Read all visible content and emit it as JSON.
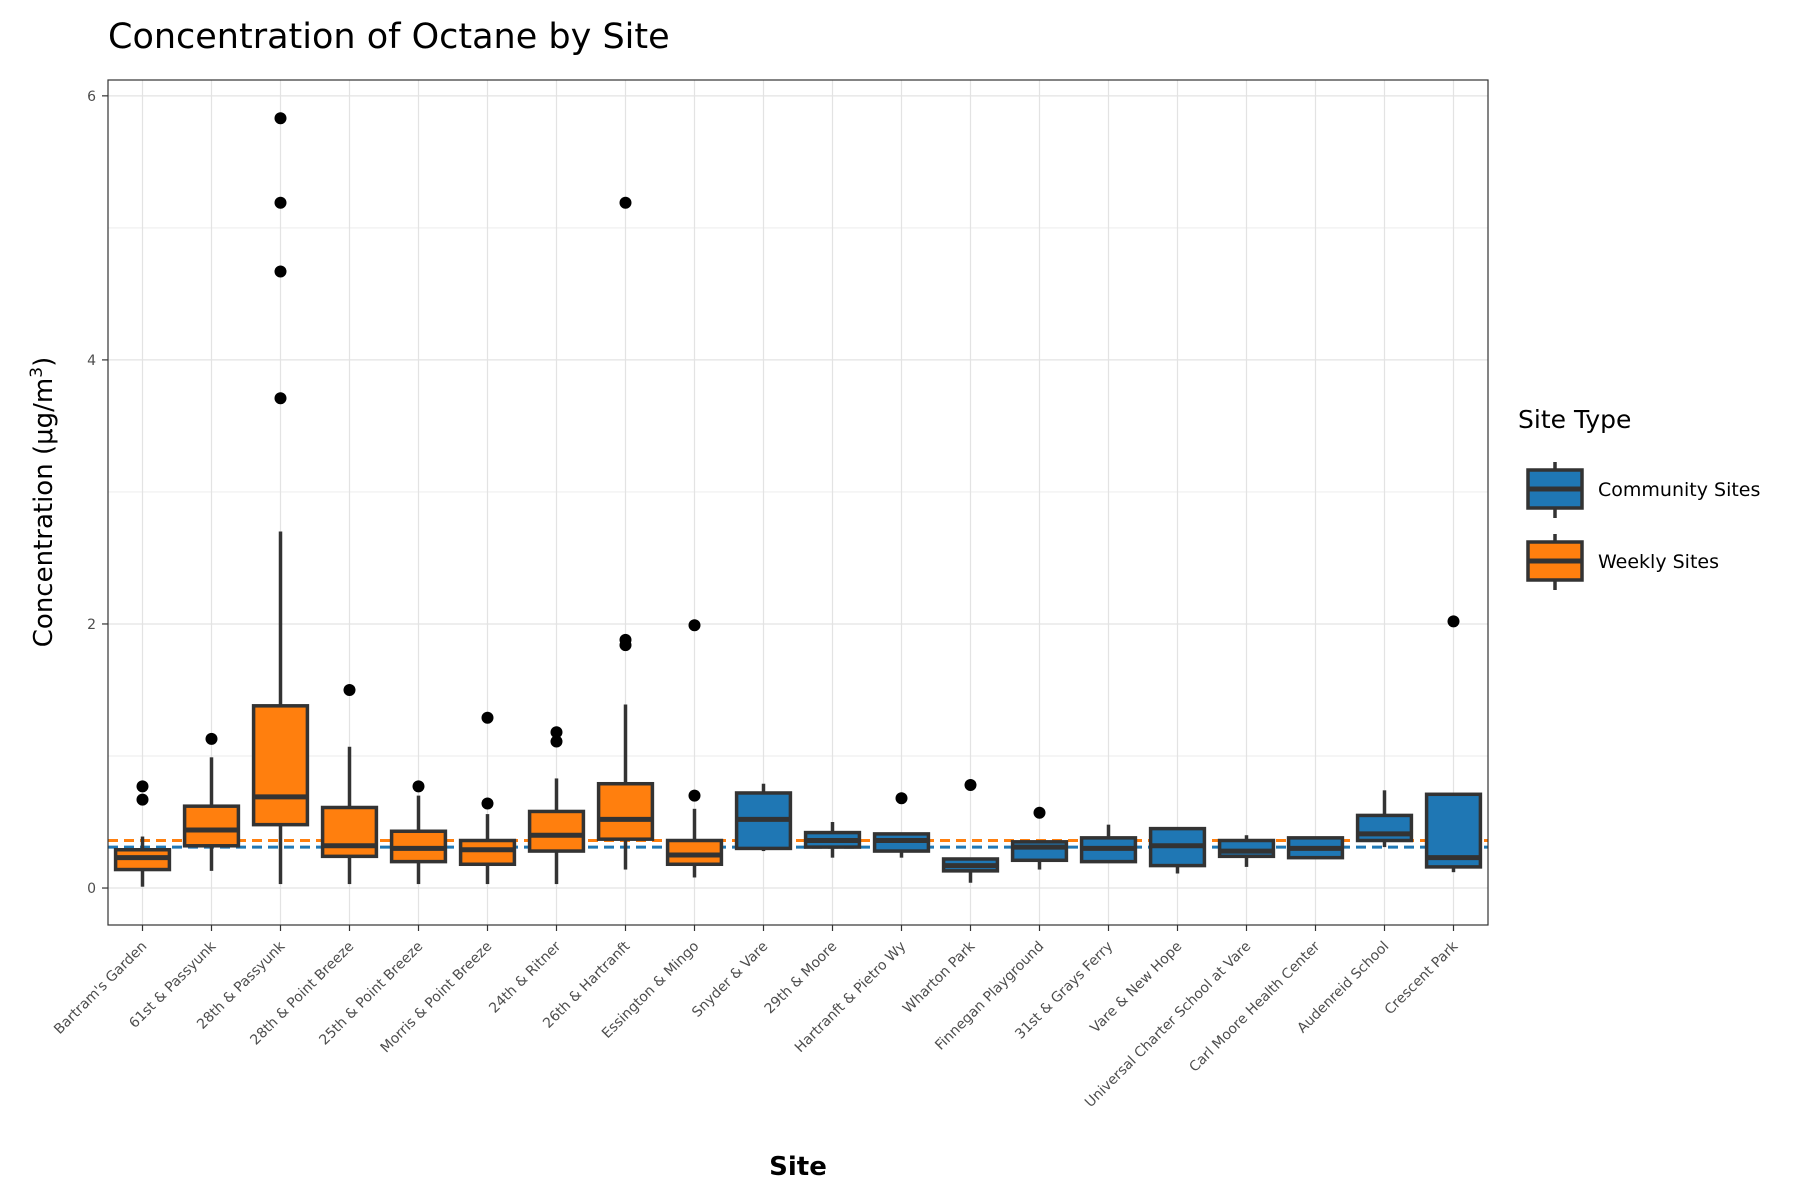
{
  "chart_data": {
    "type": "box",
    "title": "Concentration of Octane by Site",
    "xlabel": "Site",
    "ylabel_main": "Concentration (μg/m",
    "ylabel_sup": "3",
    "ylabel_close": ")",
    "ylim": [
      -0.28,
      6.12
    ],
    "yticks": [
      0,
      2,
      4,
      6
    ],
    "grid": true,
    "legend": {
      "title": "Site Type",
      "position": "right",
      "entries": [
        {
          "key": "community",
          "label": "Community Sites",
          "color": "#1f77b4"
        },
        {
          "key": "weekly",
          "label": "Weekly Sites",
          "color": "#ff7f0e"
        }
      ]
    },
    "reference_lines": [
      {
        "type": "weekly",
        "color": "#ff7f0e",
        "y": 0.36
      },
      {
        "type": "community",
        "color": "#1f77b4",
        "y": 0.31
      }
    ],
    "categories": [
      "Bartram's Garden",
      "61st & Passyunk",
      "28th & Passyunk",
      "28th & Point Breeze",
      "25th & Point Breeze",
      "Morris & Point Breeze",
      "24th & Ritner",
      "26th & Hartranft",
      "Essington & Mingo",
      "Snyder & Vare",
      "29th & Moore",
      "Hartranft & Pietro Wy",
      "Wharton Park",
      "Finnegan Playground",
      "31st & Grays Ferry",
      "Vare & New Hope",
      "Universal Charter School at Vare",
      "Carl Moore Health Center",
      "Audenreid School",
      "Crescent Park"
    ],
    "boxes": [
      {
        "site": "Bartram's Garden",
        "type": "weekly",
        "min": 0.01,
        "q1": 0.14,
        "median": 0.23,
        "q3": 0.29,
        "max": 0.39,
        "outliers": [
          0.77,
          0.67
        ]
      },
      {
        "site": "61st & Passyunk",
        "type": "weekly",
        "min": 0.13,
        "q1": 0.32,
        "median": 0.44,
        "q3": 0.62,
        "max": 0.99,
        "outliers": [
          1.13
        ]
      },
      {
        "site": "28th & Passyunk",
        "type": "weekly",
        "min": 0.03,
        "q1": 0.48,
        "median": 0.69,
        "q3": 1.38,
        "max": 2.7,
        "outliers": [
          5.83,
          5.19,
          4.67,
          3.71
        ]
      },
      {
        "site": "28th & Point Breeze",
        "type": "weekly",
        "min": 0.03,
        "q1": 0.24,
        "median": 0.32,
        "q3": 0.61,
        "max": 1.07,
        "outliers": [
          1.5
        ]
      },
      {
        "site": "25th & Point Breeze",
        "type": "weekly",
        "min": 0.03,
        "q1": 0.2,
        "median": 0.3,
        "q3": 0.43,
        "max": 0.7,
        "outliers": [
          0.77
        ]
      },
      {
        "site": "Morris & Point Breeze",
        "type": "weekly",
        "min": 0.03,
        "q1": 0.18,
        "median": 0.29,
        "q3": 0.36,
        "max": 0.56,
        "outliers": [
          1.29,
          0.64
        ]
      },
      {
        "site": "24th & Ritner",
        "type": "weekly",
        "min": 0.03,
        "q1": 0.28,
        "median": 0.4,
        "q3": 0.58,
        "max": 0.83,
        "outliers": [
          1.18,
          1.11
        ]
      },
      {
        "site": "26th & Hartranft",
        "type": "weekly",
        "min": 0.14,
        "q1": 0.37,
        "median": 0.52,
        "q3": 0.79,
        "max": 1.39,
        "outliers": [
          5.19,
          1.88,
          1.84
        ]
      },
      {
        "site": "Essington & Mingo",
        "type": "weekly",
        "min": 0.08,
        "q1": 0.18,
        "median": 0.25,
        "q3": 0.36,
        "max": 0.6,
        "outliers": [
          1.99,
          0.7
        ]
      },
      {
        "site": "Snyder & Vare",
        "type": "community",
        "min": 0.28,
        "q1": 0.3,
        "median": 0.52,
        "q3": 0.72,
        "max": 0.79,
        "outliers": []
      },
      {
        "site": "29th & Moore",
        "type": "community",
        "min": 0.23,
        "q1": 0.31,
        "median": 0.36,
        "q3": 0.42,
        "max": 0.5,
        "outliers": []
      },
      {
        "site": "Hartranft & Pietro Wy",
        "type": "community",
        "min": 0.23,
        "q1": 0.28,
        "median": 0.36,
        "q3": 0.41,
        "max": 0.41,
        "outliers": [
          0.68
        ]
      },
      {
        "site": "Wharton Park",
        "type": "community",
        "min": 0.04,
        "q1": 0.13,
        "median": 0.17,
        "q3": 0.22,
        "max": 0.22,
        "outliers": [
          0.78
        ]
      },
      {
        "site": "Finnegan Playground",
        "type": "community",
        "min": 0.14,
        "q1": 0.21,
        "median": 0.31,
        "q3": 0.35,
        "max": 0.35,
        "outliers": [
          0.57
        ]
      },
      {
        "site": "31st & Grays Ferry",
        "type": "community",
        "min": 0.2,
        "q1": 0.2,
        "median": 0.3,
        "q3": 0.38,
        "max": 0.48,
        "outliers": []
      },
      {
        "site": "Vare & New Hope",
        "type": "community",
        "min": 0.11,
        "q1": 0.17,
        "median": 0.32,
        "q3": 0.45,
        "max": 0.45,
        "outliers": []
      },
      {
        "site": "Universal Charter School at Vare",
        "type": "community",
        "min": 0.16,
        "q1": 0.24,
        "median": 0.28,
        "q3": 0.36,
        "max": 0.4,
        "outliers": []
      },
      {
        "site": "Carl Moore Health Center",
        "type": "community",
        "min": 0.22,
        "q1": 0.23,
        "median": 0.3,
        "q3": 0.38,
        "max": 0.38,
        "outliers": []
      },
      {
        "site": "Audenreid School",
        "type": "community",
        "min": 0.31,
        "q1": 0.36,
        "median": 0.41,
        "q3": 0.55,
        "max": 0.74,
        "outliers": []
      },
      {
        "site": "Crescent Park",
        "type": "community",
        "min": 0.12,
        "q1": 0.16,
        "median": 0.23,
        "q3": 0.71,
        "max": 0.71,
        "outliers": [
          2.02
        ]
      }
    ]
  }
}
